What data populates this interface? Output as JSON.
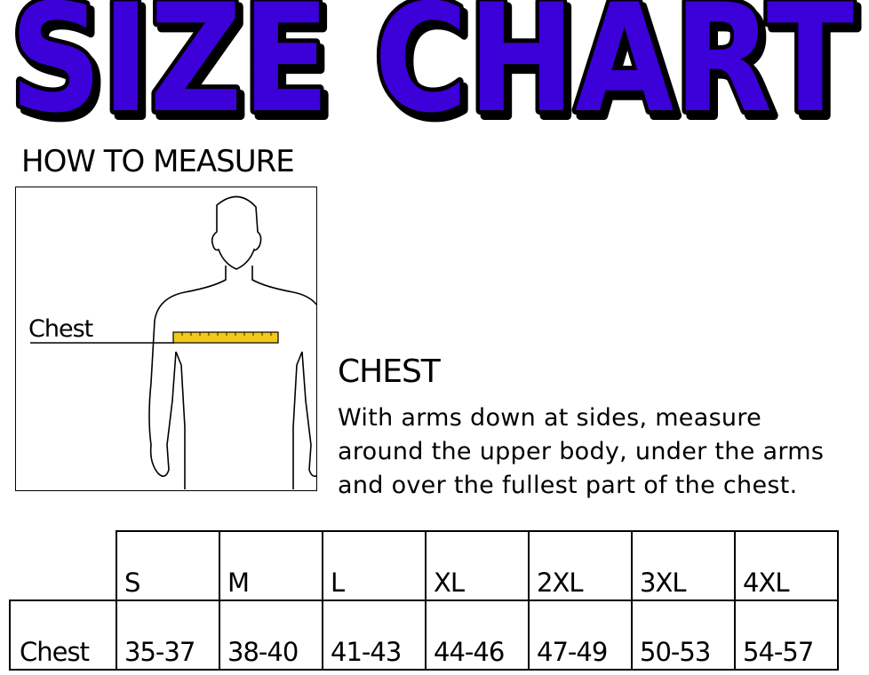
{
  "title": "SIZE CHART",
  "colors": {
    "title_fill": "#3c00d8",
    "title_outline": "#000000",
    "tape": "#f2c81a"
  },
  "how_to_measure": "HOW TO MEASURE",
  "figure": {
    "chest_label": "Chest"
  },
  "section": {
    "title": "CHEST",
    "lines": [
      "With arms down at sides, measure",
      "around the upper body, under the arms",
      "and over the fullest part of the chest."
    ]
  },
  "table": {
    "sizes": [
      "S",
      "M",
      "L",
      "XL",
      "2XL",
      "3XL",
      "4XL"
    ],
    "rows": [
      {
        "label": "Chest",
        "values": [
          "35-37",
          "38-40",
          "41-43",
          "44-46",
          "47-49",
          "50-53",
          "54-57"
        ]
      }
    ]
  }
}
